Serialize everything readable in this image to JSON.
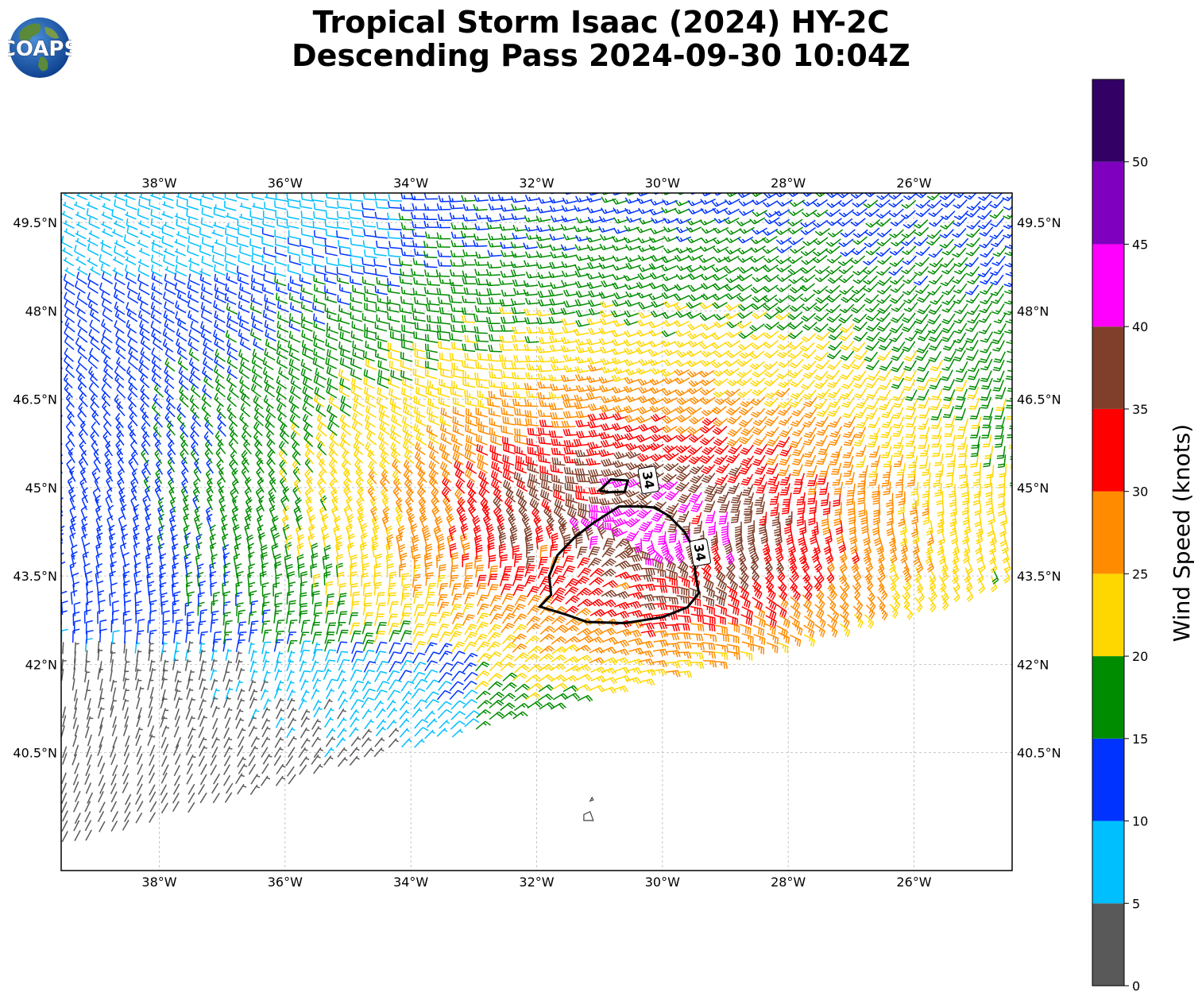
{
  "title": {
    "line1": "Tropical Storm Isaac (2024) HY-2C",
    "line2": "Descending Pass 2024-09-30 10:04Z"
  },
  "logo": {
    "text": "COAPS",
    "icon": "globe-icon"
  },
  "map": {
    "lon_range": [
      -39.56,
      -24.44
    ],
    "lat_range": [
      38.5,
      50.0
    ],
    "lon_ticks": [
      {
        "value": -38,
        "label": "38°W"
      },
      {
        "value": -36,
        "label": "36°W"
      },
      {
        "value": -34,
        "label": "34°W"
      },
      {
        "value": -32,
        "label": "32°W"
      },
      {
        "value": -30,
        "label": "30°W"
      },
      {
        "value": -28,
        "label": "28°W"
      },
      {
        "value": -26,
        "label": "26°W"
      }
    ],
    "lat_ticks": [
      {
        "value": 49.5,
        "label": "49.5°N"
      },
      {
        "value": 48.0,
        "label": "48°N"
      },
      {
        "value": 46.5,
        "label": "46.5°N"
      },
      {
        "value": 45.0,
        "label": "45°N"
      },
      {
        "value": 43.5,
        "label": "43.5°N"
      },
      {
        "value": 42.0,
        "label": "42°N"
      },
      {
        "value": 40.5,
        "label": "40.5°N"
      }
    ],
    "gridlines": true,
    "storm_center": {
      "lon": -30.6,
      "lat": 44.1
    },
    "contour_34kt": {
      "label": "34",
      "main": [
        [
          -30.69,
          44.68
        ],
        [
          -30.31,
          44.68
        ],
        [
          -30.12,
          44.66
        ],
        [
          -29.9,
          44.52
        ],
        [
          -29.65,
          44.25
        ],
        [
          -29.5,
          43.96
        ],
        [
          -29.48,
          43.55
        ],
        [
          -29.42,
          43.21
        ],
        [
          -29.6,
          42.97
        ],
        [
          -30.0,
          42.8
        ],
        [
          -30.6,
          42.7
        ],
        [
          -31.2,
          42.72
        ],
        [
          -31.52,
          42.84
        ],
        [
          -31.95,
          42.98
        ],
        [
          -31.77,
          43.18
        ],
        [
          -31.8,
          43.5
        ],
        [
          -31.67,
          43.85
        ],
        [
          -31.4,
          44.15
        ],
        [
          -31.1,
          44.4
        ],
        [
          -30.69,
          44.68
        ]
      ],
      "small": [
        [
          -31.0,
          44.95
        ],
        [
          -30.82,
          45.14
        ],
        [
          -30.55,
          45.12
        ],
        [
          -30.6,
          44.93
        ],
        [
          -30.85,
          44.92
        ],
        [
          -31.0,
          44.95
        ]
      ],
      "label_positions": [
        {
          "lon": -30.22,
          "lat": 45.13
        },
        {
          "lon": -29.4,
          "lat": 43.9
        }
      ]
    },
    "islands": [
      [
        [
          -31.25,
          39.35
        ],
        [
          -31.1,
          39.35
        ],
        [
          -31.15,
          39.5
        ],
        [
          -31.25,
          39.45
        ],
        [
          -31.25,
          39.35
        ]
      ],
      [
        [
          -31.15,
          39.68
        ],
        [
          -31.1,
          39.7
        ],
        [
          -31.12,
          39.74
        ],
        [
          -31.15,
          39.68
        ]
      ]
    ]
  },
  "wind_field": {
    "description_units": "knots",
    "barb_spacing_deg": 0.2,
    "pass_edge_points": [
      [
        -39.56,
        38.9
      ],
      [
        -34.0,
        40.6
      ],
      [
        -28.0,
        42.45
      ],
      [
        -24.44,
        43.55
      ]
    ],
    "swath_note": "vortex wind field centered on storm_center"
  },
  "colorbar": {
    "title": "Wind Speed (knots)",
    "bins": [
      {
        "min": 0,
        "max": 5,
        "color": "#595959"
      },
      {
        "min": 5,
        "max": 10,
        "color": "#00bfff"
      },
      {
        "min": 10,
        "max": 15,
        "color": "#0033ff"
      },
      {
        "min": 15,
        "max": 20,
        "color": "#008c00"
      },
      {
        "min": 20,
        "max": 25,
        "color": "#ffd700"
      },
      {
        "min": 25,
        "max": 30,
        "color": "#ff8c00"
      },
      {
        "min": 30,
        "max": 35,
        "color": "#ff0000"
      },
      {
        "min": 35,
        "max": 40,
        "color": "#7f3f2a"
      },
      {
        "min": 40,
        "max": 45,
        "color": "#ff00ff"
      },
      {
        "min": 45,
        "max": 50,
        "color": "#8000bf"
      },
      {
        "min": 50,
        "max": 55,
        "color": "#330066"
      }
    ],
    "tick_labels": [
      "0",
      "5",
      "10",
      "15",
      "20",
      "25",
      "30",
      "35",
      "40",
      "45",
      "50"
    ]
  }
}
